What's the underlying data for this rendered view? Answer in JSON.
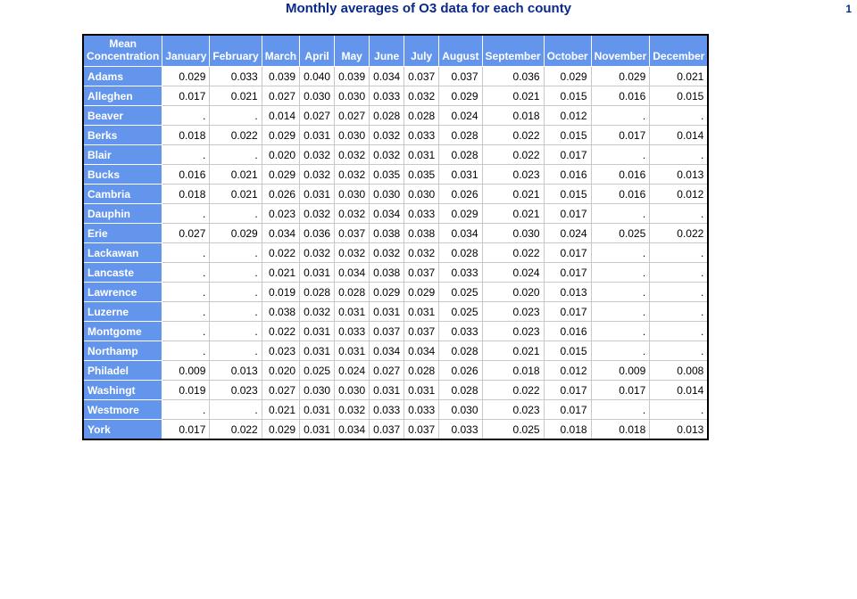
{
  "title": "Monthly averages of O3 data for each county",
  "page_number": "1",
  "table": {
    "corner_header": [
      "Mean",
      "Concentration"
    ],
    "columns": [
      "January",
      "February",
      "March",
      "April",
      "May",
      "June",
      "July",
      "August",
      "September",
      "October",
      "November",
      "December"
    ],
    "rows": [
      {
        "county": "Adams",
        "values": [
          "0.029",
          "0.033",
          "0.039",
          "0.040",
          "0.039",
          "0.034",
          "0.037",
          "0.037",
          "0.036",
          "0.029",
          "0.029",
          "0.021"
        ]
      },
      {
        "county": "Alleghen",
        "values": [
          "0.017",
          "0.021",
          "0.027",
          "0.030",
          "0.030",
          "0.033",
          "0.032",
          "0.029",
          "0.021",
          "0.015",
          "0.016",
          "0.015"
        ]
      },
      {
        "county": "Beaver",
        "values": [
          ".",
          ".",
          "0.014",
          "0.027",
          "0.027",
          "0.028",
          "0.028",
          "0.024",
          "0.018",
          "0.012",
          ".",
          "."
        ]
      },
      {
        "county": "Berks",
        "values": [
          "0.018",
          "0.022",
          "0.029",
          "0.031",
          "0.030",
          "0.032",
          "0.033",
          "0.028",
          "0.022",
          "0.015",
          "0.017",
          "0.014"
        ]
      },
      {
        "county": "Blair",
        "values": [
          ".",
          ".",
          "0.020",
          "0.032",
          "0.032",
          "0.032",
          "0.031",
          "0.028",
          "0.022",
          "0.017",
          ".",
          "."
        ]
      },
      {
        "county": "Bucks",
        "values": [
          "0.016",
          "0.021",
          "0.029",
          "0.032",
          "0.032",
          "0.035",
          "0.035",
          "0.031",
          "0.023",
          "0.016",
          "0.016",
          "0.013"
        ]
      },
      {
        "county": "Cambria",
        "values": [
          "0.018",
          "0.021",
          "0.026",
          "0.031",
          "0.030",
          "0.030",
          "0.030",
          "0.026",
          "0.021",
          "0.015",
          "0.016",
          "0.012"
        ]
      },
      {
        "county": "Dauphin",
        "values": [
          ".",
          ".",
          "0.023",
          "0.032",
          "0.032",
          "0.034",
          "0.033",
          "0.029",
          "0.021",
          "0.017",
          ".",
          "."
        ]
      },
      {
        "county": "Erie",
        "values": [
          "0.027",
          "0.029",
          "0.034",
          "0.036",
          "0.037",
          "0.038",
          "0.038",
          "0.034",
          "0.030",
          "0.024",
          "0.025",
          "0.022"
        ]
      },
      {
        "county": "Lackawan",
        "values": [
          ".",
          ".",
          "0.022",
          "0.032",
          "0.032",
          "0.032",
          "0.032",
          "0.028",
          "0.022",
          "0.017",
          ".",
          "."
        ]
      },
      {
        "county": "Lancaste",
        "values": [
          ".",
          ".",
          "0.021",
          "0.031",
          "0.034",
          "0.038",
          "0.037",
          "0.033",
          "0.024",
          "0.017",
          ".",
          "."
        ]
      },
      {
        "county": "Lawrence",
        "values": [
          ".",
          ".",
          "0.019",
          "0.028",
          "0.028",
          "0.029",
          "0.029",
          "0.025",
          "0.020",
          "0.013",
          ".",
          "."
        ]
      },
      {
        "county": "Luzerne",
        "values": [
          ".",
          ".",
          "0.038",
          "0.032",
          "0.031",
          "0.031",
          "0.031",
          "0.025",
          "0.023",
          "0.017",
          ".",
          "."
        ]
      },
      {
        "county": "Montgome",
        "values": [
          ".",
          ".",
          "0.022",
          "0.031",
          "0.033",
          "0.037",
          "0.037",
          "0.033",
          "0.023",
          "0.016",
          ".",
          "."
        ]
      },
      {
        "county": "Northamp",
        "values": [
          ".",
          ".",
          "0.023",
          "0.031",
          "0.031",
          "0.034",
          "0.034",
          "0.028",
          "0.021",
          "0.015",
          ".",
          "."
        ]
      },
      {
        "county": "Philadel",
        "values": [
          "0.009",
          "0.013",
          "0.020",
          "0.025",
          "0.024",
          "0.027",
          "0.028",
          "0.026",
          "0.018",
          "0.012",
          "0.009",
          "0.008"
        ]
      },
      {
        "county": "Washingt",
        "values": [
          "0.019",
          "0.023",
          "0.027",
          "0.030",
          "0.030",
          "0.031",
          "0.031",
          "0.028",
          "0.022",
          "0.017",
          "0.017",
          "0.014"
        ]
      },
      {
        "county": "Westmore",
        "values": [
          ".",
          ".",
          "0.021",
          "0.031",
          "0.032",
          "0.033",
          "0.033",
          "0.030",
          "0.023",
          "0.017",
          ".",
          "."
        ]
      },
      {
        "county": "York",
        "values": [
          "0.017",
          "0.022",
          "0.029",
          "0.031",
          "0.034",
          "0.037",
          "0.037",
          "0.033",
          "0.025",
          "0.018",
          "0.018",
          "0.013"
        ]
      }
    ]
  },
  "colors": {
    "header_bg": "#6495ed",
    "title_text": "#0a2a8a"
  }
}
